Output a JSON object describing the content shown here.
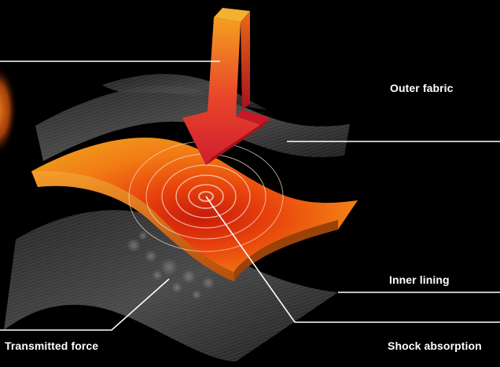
{
  "labels": {
    "outer_fabric": "Outer fabric",
    "inner_lining": "Inner lining",
    "shock_absorption": "Shock absorption",
    "transmitted_force": "Transmitted force"
  },
  "colors": {
    "background": "#000000",
    "fabric_layer": "#3a3a3a",
    "padding_layer": "#f07a10",
    "impact_arrow": "#e8322a",
    "callout_line": "#ffffff"
  }
}
